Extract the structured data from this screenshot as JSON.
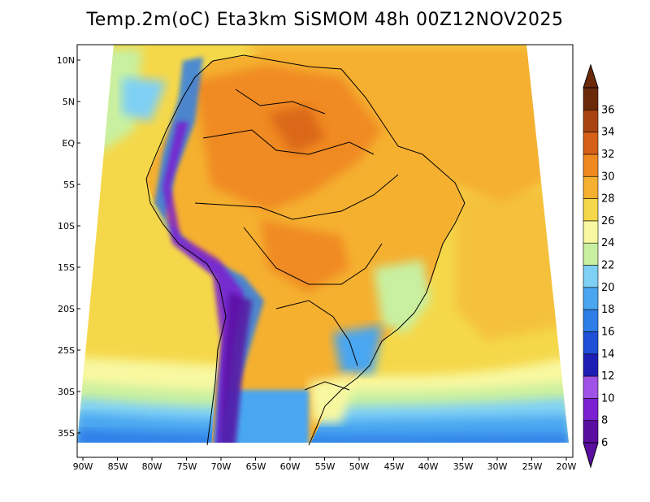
{
  "title": "Temp.2m(oC) Eta3km SiSMOM 48h 00Z12NOV2025",
  "lat_labels": [
    "10N",
    "5N",
    "EQ",
    "5S",
    "10S",
    "15S",
    "20S",
    "25S",
    "30S",
    "35S"
  ],
  "lon_labels": [
    "90W",
    "85W",
    "80W",
    "75W",
    "70W",
    "65W",
    "60W",
    "55W",
    "50W",
    "45W",
    "40W",
    "35W",
    "30W",
    "25W",
    "20W"
  ],
  "colorbar": {
    "labels": [
      "6",
      "8",
      "10",
      "12",
      "14",
      "16",
      "18",
      "20",
      "22",
      "24",
      "26",
      "28",
      "30",
      "32",
      "34",
      "36"
    ],
    "colors": [
      "#5a0ea0",
      "#7b1fd0",
      "#a052e6",
      "#1e1eb4",
      "#2050d8",
      "#2d7ee8",
      "#4aa6f0",
      "#7fd0f5",
      "#c8f0a0",
      "#f8f8a0",
      "#f5d84a",
      "#f5b030",
      "#f08a20",
      "#d66018",
      "#a84412",
      "#6a2a0a"
    ]
  }
}
